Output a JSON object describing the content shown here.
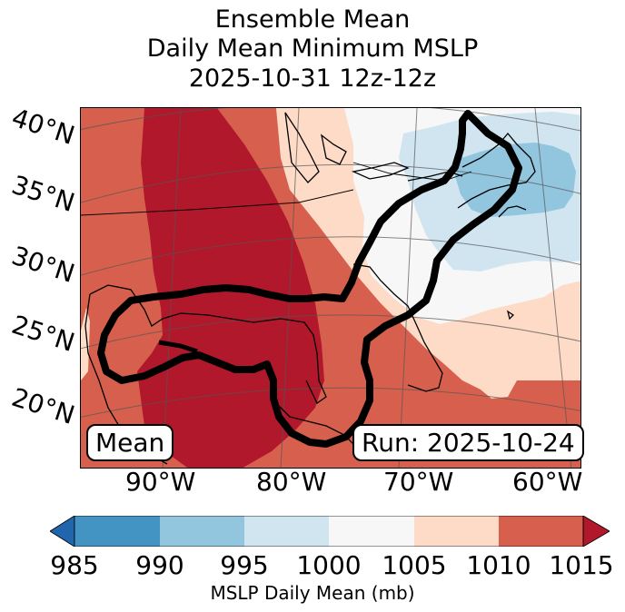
{
  "title": {
    "line1": "Ensemble Mean",
    "line2": "Daily Mean Minimum MSLP",
    "line3": "2025-10-31 12z-12z"
  },
  "map": {
    "lat_labels": [
      "40°N",
      "35°N",
      "30°N",
      "25°N",
      "20°N"
    ],
    "lon_labels": [
      "90°W",
      "80°W",
      "70°W",
      "60°W"
    ],
    "left_box": "Mean",
    "right_box": "Run: 2025-10-24"
  },
  "colorbar": {
    "label": "MSLP Daily Mean (mb)",
    "ticks": [
      "985",
      "990",
      "995",
      "1000",
      "1005",
      "1010",
      "1015"
    ],
    "colors": {
      "under": "#2166ac",
      "c985_990": "#4393c3",
      "c990_995": "#92c5de",
      "c995_1000": "#d1e5f0",
      "c1000_1005": "#f7f7f7",
      "c1005_1010": "#fddbc7",
      "c1010_1015": "#d6604d",
      "over": "#b2182b"
    }
  }
}
